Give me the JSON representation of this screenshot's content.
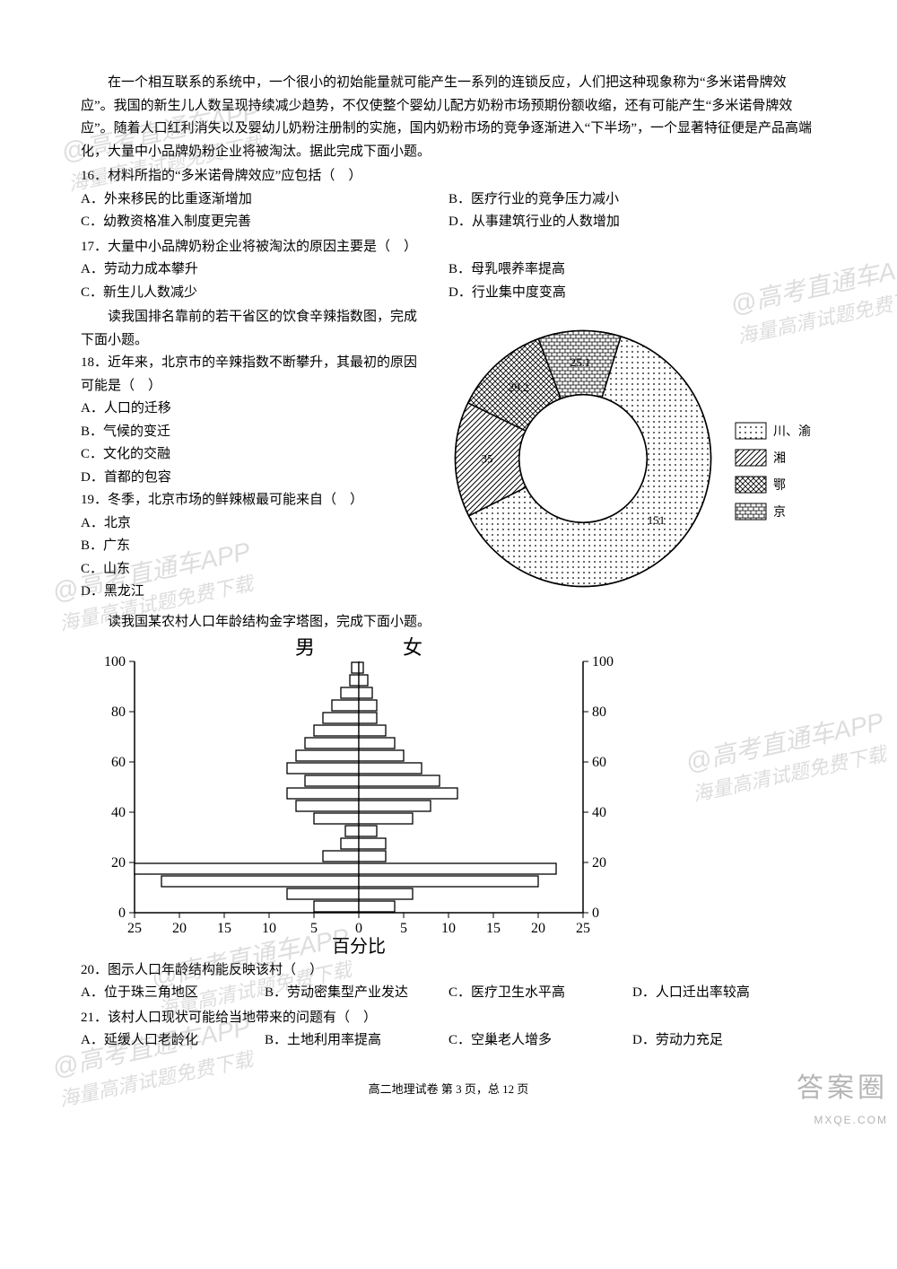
{
  "passage": {
    "p1": "在一个相互联系的系统中，一个很小的初始能量就可能产生一系列的连锁反应，人们把这种现象称为“多米诺骨牌效应”。我国的新生儿人数呈现持续减少趋势，不仅使整个婴幼儿配方奶粉市场预期份额收缩，还有可能产生“多米诺骨牌效应”。随着人口红利消失以及婴幼儿奶粉注册制的实施，国内奶粉市场的竞争逐渐进入“下半场”，一个显著特征便是产品高端化，大量中小品牌奶粉企业将被淘汰。据此完成下面小题。"
  },
  "q16": {
    "stem": "16．材料所指的“多米诺骨牌效应”应包括（　）",
    "A": "A．外来移民的比重逐渐增加",
    "B": "B．医疗行业的竞争压力减小",
    "C": "C．幼教资格准入制度更完善",
    "D": "D．从事建筑行业的人数增加"
  },
  "q17": {
    "stem": "17．大量中小品牌奶粉企业将被淘汰的原因主要是（　）",
    "A": "A．劳动力成本攀升",
    "B": "B．母乳喂养率提高",
    "C": "C．新生儿人数减少",
    "D": "D．行业集中度变高"
  },
  "intro1819": "读我国排名靠前的若干省区的饮食辛辣指数图，完成下面小题。",
  "q18": {
    "stem": "18．近年来，北京市的辛辣指数不断攀升，其最初的原因可能是（　）",
    "A": "A．人口的迁移",
    "B": "B．气候的变迁",
    "C": "C．文化的交融",
    "D": "D．首都的包容"
  },
  "q19": {
    "stem": "19．冬季，北京市场的鲜辣椒最可能来自（　）",
    "A": "A．北京",
    "B": "B．广东",
    "C": "C．山东",
    "D": "D．黑龙江"
  },
  "donut_chart": {
    "type": "donut",
    "background_color": "#ffffff",
    "outer_radius": 150,
    "inner_radius": 75,
    "stroke_color": "#000000",
    "slices": [
      {
        "label": "151",
        "value": 151,
        "legend": "川、渝",
        "pattern": "dots"
      },
      {
        "label": "35",
        "value": 35,
        "legend": "湘",
        "pattern": "diag"
      },
      {
        "label": "29.2",
        "value": 29.2,
        "legend": "鄂",
        "pattern": "cross"
      },
      {
        "label": "25.1",
        "value": 25.1,
        "legend": "京",
        "pattern": "brick"
      }
    ],
    "label_fontsize": 13,
    "legend_fontsize": 14
  },
  "intro2021": "读我国某农村人口年龄结构金字塔图，完成下面小题。",
  "pyramid_chart": {
    "type": "population-pyramid",
    "title_left": "男",
    "title_right": "女",
    "y_title": "",
    "x_title": "百分比",
    "y_ticks": [
      0,
      20,
      40,
      60,
      80,
      100
    ],
    "x_ticks": [
      25,
      20,
      15,
      10,
      5,
      0,
      5,
      10,
      15,
      20,
      25
    ],
    "x_max": 25,
    "bar_fill": "#ffffff",
    "bar_stroke": "#000000",
    "axis_color": "#000000",
    "label_fontsize": 18,
    "tick_fontsize": 16,
    "bars": [
      {
        "age_low": 0,
        "male": 5,
        "female": 4
      },
      {
        "age_low": 5,
        "male": 8,
        "female": 6
      },
      {
        "age_low": 10,
        "male": 22,
        "female": 20
      },
      {
        "age_low": 15,
        "male": 25,
        "female": 22
      },
      {
        "age_low": 20,
        "male": 4,
        "female": 3
      },
      {
        "age_low": 25,
        "male": 2,
        "female": 3
      },
      {
        "age_low": 30,
        "male": 1.5,
        "female": 2
      },
      {
        "age_low": 35,
        "male": 5,
        "female": 6
      },
      {
        "age_low": 40,
        "male": 7,
        "female": 8
      },
      {
        "age_low": 45,
        "male": 8,
        "female": 11
      },
      {
        "age_low": 50,
        "male": 6,
        "female": 9
      },
      {
        "age_low": 55,
        "male": 8,
        "female": 7
      },
      {
        "age_low": 60,
        "male": 7,
        "female": 5
      },
      {
        "age_low": 65,
        "male": 6,
        "female": 4
      },
      {
        "age_low": 70,
        "male": 5,
        "female": 3
      },
      {
        "age_low": 75,
        "male": 4,
        "female": 2
      },
      {
        "age_low": 80,
        "male": 3,
        "female": 2
      },
      {
        "age_low": 85,
        "male": 2,
        "female": 1.5
      },
      {
        "age_low": 90,
        "male": 1,
        "female": 1
      },
      {
        "age_low": 95,
        "male": 0.8,
        "female": 0.5
      }
    ]
  },
  "q20": {
    "stem": "20．图示人口年龄结构能反映该村（　）",
    "A": "A．位于珠三角地区",
    "B": "B．劳动密集型产业发达",
    "C": "C．医疗卫生水平高",
    "D": "D．人口迁出率较高"
  },
  "q21": {
    "stem": "21．该村人口现状可能给当地带来的问题有（　）",
    "A": "A．延缓人口老龄化",
    "B": "B．土地利用率提高",
    "C": "C．空巢老人增多",
    "D": "D．劳动力充足"
  },
  "footer": "高二地理试卷  第 3 页，总 12 页",
  "watermarks": {
    "line1": "@高考直通车APP",
    "line2": "海量高清试题免费下载"
  },
  "corner": {
    "big": "答案圈",
    "small": "MXQE.COM"
  }
}
